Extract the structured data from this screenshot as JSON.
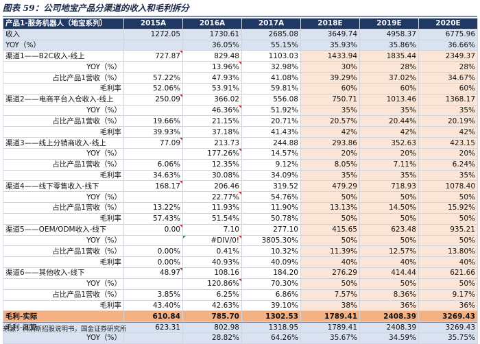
{
  "title": "图表 59：公司地宝产品分渠道的收入和毛利拆分",
  "source": "来源：科沃斯招股说明书，国金证券研究所",
  "header": [
    "产品1-服务机器人（地宝系列）",
    "2015A",
    "2016A",
    "2017A",
    "2018E",
    "2019E",
    "2020E"
  ],
  "rows": [
    {
      "label": "收入",
      "align": "left",
      "style": "hl",
      "values": [
        "1272.05",
        "1730.61",
        "2685.08",
        "3649.74",
        "4958.37",
        "6775.96"
      ]
    },
    {
      "label": "YOY（%）",
      "align": "left",
      "style": "hl",
      "values": [
        "",
        "36.05%",
        "55.15%",
        "35.93%",
        "35.86%",
        "36.66%"
      ]
    },
    {
      "label": "渠道1——B2C收入-线上",
      "align": "left",
      "style": "",
      "values": [
        "727.87",
        "829.48",
        "1103.03",
        "1433.94",
        "1835.44",
        "2349.37"
      ]
    },
    {
      "label": "YOY（%）",
      "align": "sub",
      "style": "",
      "values": [
        "",
        "13.96%",
        "32.98%",
        "30%",
        "28%",
        "28%"
      ]
    },
    {
      "label": "占比产品1营收（%）",
      "align": "sub",
      "style": "",
      "values": [
        "57.22%",
        "47.93%",
        "41.08%",
        "39.29%",
        "37.02%",
        "34.67%"
      ]
    },
    {
      "label": "毛利率",
      "align": "sub",
      "style": "",
      "values": [
        "52.06%",
        "53.91%",
        "59.81%",
        "60%",
        "60%",
        "60%"
      ]
    },
    {
      "label": "渠道2——电商平台入仓收入-线上",
      "align": "left",
      "style": "",
      "values": [
        "250.09",
        "366.02",
        "556.08",
        "750.71",
        "1013.46",
        "1368.17"
      ]
    },
    {
      "label": "YOY（%）",
      "align": "sub",
      "style": "",
      "values": [
        "",
        "46.36%",
        "51.92%",
        "35%",
        "35%",
        "35%"
      ]
    },
    {
      "label": "占比产品1营收（%）",
      "align": "sub",
      "style": "",
      "values": [
        "19.66%",
        "21.15%",
        "20.71%",
        "20.57%",
        "20.44%",
        "20.19%"
      ]
    },
    {
      "label": "毛利率",
      "align": "sub",
      "style": "",
      "values": [
        "39.93%",
        "37.18%",
        "41.43%",
        "42%",
        "42%",
        "42%"
      ]
    },
    {
      "label": "渠道3——线上分销商收入-线上",
      "align": "left",
      "style": "",
      "values": [
        "77.09",
        "213.73",
        "244.88",
        "293.86",
        "352.63",
        "423.15"
      ]
    },
    {
      "label": "YOY（%）",
      "align": "sub",
      "style": "",
      "values": [
        "",
        "177.26%",
        "14.57%",
        "20%",
        "20%",
        "20%"
      ]
    },
    {
      "label": "占比产品1营收（%）",
      "align": "sub",
      "style": "",
      "values": [
        "6.06%",
        "12.35%",
        "9.12%",
        "8.05%",
        "7.11%",
        "6.24%"
      ]
    },
    {
      "label": "毛利率",
      "align": "sub",
      "style": "",
      "values": [
        "34.63%",
        "30.08%",
        "34.09%",
        "35%",
        "35%",
        "35%"
      ]
    },
    {
      "label": "渠道4——线下零售收入-线下",
      "align": "left",
      "style": "",
      "values": [
        "168.17",
        "206.46",
        "319.52",
        "479.29",
        "718.93",
        "1078.40"
      ]
    },
    {
      "label": "YOY（%）",
      "align": "sub",
      "style": "",
      "values": [
        "",
        "22.77%",
        "54.76%",
        "50%",
        "50%",
        "50%"
      ]
    },
    {
      "label": "占比产品1营收（%）",
      "align": "sub",
      "style": "",
      "values": [
        "13.22%",
        "11.93%",
        "11.90%",
        "13.13%",
        "14.50%",
        "15.92%"
      ]
    },
    {
      "label": "毛利率",
      "align": "sub",
      "style": "",
      "values": [
        "57.43%",
        "51.54%",
        "50.78%",
        "50%",
        "50%",
        "50%"
      ]
    },
    {
      "label": "渠道5——OEM/ODM收入-线下",
      "align": "left",
      "style": "",
      "values": [
        "0.00",
        "7.10",
        "277.10",
        "415.65",
        "623.48",
        "935.21"
      ]
    },
    {
      "label": "YOY（%）",
      "align": "sub",
      "style": "",
      "values": [
        "",
        "#DIV/0!",
        "3805.30%",
        "50%",
        "50%",
        "50%"
      ]
    },
    {
      "label": "占比产品1营收（%）",
      "align": "sub",
      "style": "",
      "values": [
        "0.00%",
        "0.41%",
        "10.32%",
        "11.39%",
        "12.57%",
        "13.80%"
      ]
    },
    {
      "label": "毛利率",
      "align": "sub",
      "style": "",
      "values": [
        "0.00%",
        "40.93%",
        "40.09%",
        "40%",
        "40%",
        "40%"
      ]
    },
    {
      "label": "渠道6——其他收入-线下",
      "align": "left",
      "style": "",
      "values": [
        "48.97",
        "108.16",
        "184.20",
        "276.29",
        "414.44",
        "621.66"
      ]
    },
    {
      "label": "YOY（%）",
      "align": "sub",
      "style": "",
      "values": [
        "",
        "120.86%",
        "70.30%",
        "50%",
        "50%",
        "50%"
      ]
    },
    {
      "label": "占比产品1营收（%）",
      "align": "sub",
      "style": "",
      "values": [
        "3.85%",
        "6.25%",
        "6.86%",
        "7.57%",
        "8.36%",
        "9.17%"
      ]
    },
    {
      "label": "毛利率",
      "align": "sub",
      "style": "",
      "values": [
        "43.40%",
        "42.63%",
        "39.10%",
        "38%",
        "36%",
        "36%"
      ]
    },
    {
      "label": "毛利-实际",
      "align": "left",
      "style": "orange",
      "values": [
        "610.84",
        "785.70",
        "1302.53",
        "1789.41",
        "2408.39",
        "3269.43"
      ]
    },
    {
      "label": "毛利-测算",
      "align": "left",
      "style": "gm2",
      "values": [
        "623.31",
        "802.98",
        "1318.95",
        "1789.41",
        "2408.39",
        "3269.43"
      ]
    },
    {
      "label": "YOY（%）",
      "align": "sub",
      "style": "gm2",
      "values": [
        "",
        "28.82%",
        "64.26%",
        "35.67%",
        "34.59%",
        "35.75%"
      ]
    }
  ]
}
